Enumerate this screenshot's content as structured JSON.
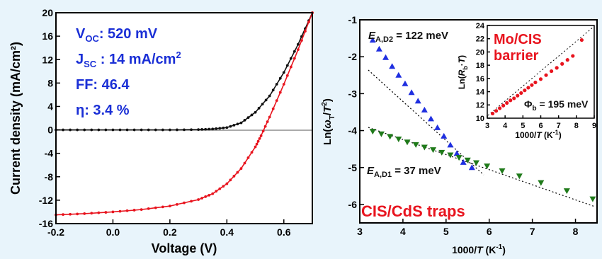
{
  "colors": {
    "background": "#e8f4fb",
    "param_blue": "#1a2fd6",
    "red": "#e8141e",
    "black": "#111111",
    "blue_marker": "#1f2fe0",
    "green_marker": "#1f7a1a"
  },
  "chart_data": [
    {
      "type": "line",
      "xlabel": "Voltage (V)",
      "ylabel": "Current density (mA/cm²)",
      "xlim": [
        -0.2,
        0.7
      ],
      "ylim": [
        -16,
        20
      ],
      "xticks": [
        "-0.2",
        "0.0",
        "0.2",
        "0.4",
        "0.6"
      ],
      "yticks": [
        "-16",
        "-12",
        "-8",
        "-4",
        "0",
        "4",
        "8",
        "12",
        "16",
        "20"
      ],
      "parameters": {
        "voc": {
          "label": "V",
          "sub": "OC",
          "value": ": 520 mV"
        },
        "jsc": {
          "label": "J",
          "sub": "SC",
          "value": " : 14 mA/cm",
          "sup": "2"
        },
        "ff": "FF: 46.4",
        "eta": "η: 3.4 %"
      },
      "series": [
        {
          "color": "black",
          "x": [
            -0.2,
            -0.1,
            0,
            0.1,
            0.2,
            0.3,
            0.35,
            0.4,
            0.45,
            0.5,
            0.55,
            0.6,
            0.65,
            0.7
          ],
          "y": [
            0,
            0,
            0,
            0,
            0,
            0.05,
            0.15,
            0.4,
            1.2,
            3.0,
            5.8,
            9.8,
            14.6,
            20
          ]
        },
        {
          "color": "red",
          "x": [
            -0.2,
            -0.1,
            0,
            0.1,
            0.2,
            0.3,
            0.35,
            0.4,
            0.45,
            0.5,
            0.52,
            0.55,
            0.6,
            0.65,
            0.7
          ],
          "y": [
            -14.5,
            -14.3,
            -14.0,
            -13.6,
            -13.0,
            -11.9,
            -10.9,
            -9.2,
            -6.6,
            -2.9,
            -1.0,
            2.2,
            7.8,
            13.7,
            20
          ]
        }
      ]
    },
    {
      "type": "scatter",
      "xlabel": "1000/T (K⁻¹)",
      "ylabel": "Ln(ω_T/T²)",
      "xlim": [
        3,
        8.5
      ],
      "ylim": [
        -6.5,
        -1
      ],
      "xticks": [
        "3",
        "4",
        "5",
        "6",
        "7",
        "8"
      ],
      "yticks": [
        "-1",
        "-2",
        "-3",
        "-4",
        "-5",
        "-6"
      ],
      "annotations": {
        "ea_d2": {
          "sym": "E",
          "sub": "A,D2",
          "rest": " = 122 meV"
        },
        "ea_d1": {
          "sym": "E",
          "sub": "A,D1",
          "rest": " = 37 meV"
        },
        "traps": "CIS/CdS  traps"
      },
      "series": [
        {
          "color": "blue",
          "x": [
            3.3,
            3.45,
            3.6,
            3.75,
            3.9,
            4.05,
            4.2,
            4.35,
            4.5,
            4.65,
            4.8,
            4.95,
            5.1,
            5.25,
            5.4,
            5.6
          ],
          "y": [
            -1.55,
            -1.79,
            -2.02,
            -2.26,
            -2.5,
            -2.73,
            -2.97,
            -3.2,
            -3.44,
            -3.68,
            -3.92,
            -4.15,
            -4.39,
            -4.62,
            -4.86,
            -5.0
          ]
        },
        {
          "color": "green",
          "x": [
            3.3,
            3.5,
            3.7,
            3.9,
            4.1,
            4.3,
            4.5,
            4.7,
            4.9,
            5.1,
            5.3,
            5.5,
            5.7,
            5.95,
            6.3,
            6.7,
            7.2,
            7.8,
            8.4
          ],
          "y": [
            -4.02,
            -4.09,
            -4.16,
            -4.23,
            -4.31,
            -4.38,
            -4.45,
            -4.52,
            -4.59,
            -4.66,
            -4.73,
            -4.8,
            -4.87,
            -4.96,
            -5.09,
            -5.23,
            -5.41,
            -5.63,
            -5.85
          ]
        }
      ]
    },
    {
      "type": "scatter",
      "xlabel": "1000/T (K⁻¹)",
      "ylabel": "Ln(R_b·T)",
      "xlim": [
        3,
        9
      ],
      "ylim": [
        10,
        24
      ],
      "xticks": [
        "3",
        "4",
        "5",
        "6",
        "7",
        "8",
        "9"
      ],
      "yticks": [
        "10",
        "12",
        "14",
        "16",
        "18",
        "20",
        "22",
        "24"
      ],
      "annotations": {
        "title_line1": "Mo/CIS",
        "title_line2": "barrier",
        "phi": {
          "sym": "Φ",
          "sub": "b",
          "rest": " = 195 meV"
        }
      },
      "series": [
        {
          "color": "red",
          "x": [
            3.3,
            3.5,
            3.7,
            3.9,
            4.1,
            4.3,
            4.5,
            4.7,
            4.9,
            5.1,
            5.3,
            5.5,
            5.7,
            6.0,
            6.3,
            6.6,
            6.9,
            7.2,
            7.5,
            7.8,
            8.3
          ],
          "y": [
            10.7,
            11.1,
            11.5,
            11.9,
            12.3,
            12.7,
            13.0,
            13.4,
            13.8,
            14.2,
            14.6,
            15.0,
            15.4,
            15.9,
            16.5,
            17.1,
            17.6,
            18.2,
            18.8,
            19.4,
            21.8
          ]
        }
      ]
    }
  ]
}
